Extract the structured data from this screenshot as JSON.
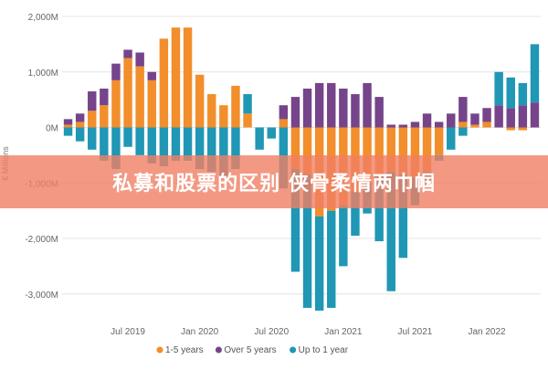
{
  "overlay": {
    "banner_text": "私募和股票的区别 侠骨柔情两巾帼"
  },
  "chart_data": {
    "type": "bar",
    "stacked": true,
    "ylabel": "€ Millions",
    "ylim": [
      -3300,
      2000
    ],
    "y_ticks": [
      2000,
      1000,
      0,
      -1000,
      -2000,
      -3000
    ],
    "y_tick_labels": [
      "2,000M",
      "1,000M",
      "0M",
      "-1,000M",
      "-2,000M",
      "-3,000M"
    ],
    "x_tick_labels": [
      "Jul 2019",
      "Jan 2020",
      "Jul 2020",
      "Jan 2021",
      "Jul 2021",
      "Jan 2022"
    ],
    "x_tick_positions": [
      5.5,
      11.5,
      17.5,
      23.5,
      29.5,
      35.5
    ],
    "categories": [
      "1",
      "2",
      "3",
      "4",
      "5",
      "6",
      "7",
      "8",
      "9",
      "10",
      "11",
      "12",
      "13",
      "14",
      "15",
      "16",
      "17",
      "18",
      "19",
      "20",
      "21",
      "22",
      "23",
      "24",
      "25",
      "26",
      "27",
      "28",
      "29",
      "30",
      "31",
      "32",
      "33",
      "34",
      "35",
      "36",
      "37",
      "38",
      "39",
      "40"
    ],
    "grid": true,
    "legend_position": "bottom",
    "series": [
      {
        "name": "1-5 years",
        "color": "#f28e2b",
        "values": [
          50,
          100,
          300,
          400,
          850,
          1250,
          1100,
          850,
          1600,
          1800,
          1800,
          950,
          600,
          400,
          750,
          250,
          0,
          0,
          150,
          -750,
          -850,
          -1600,
          -1500,
          -1400,
          -1150,
          -1000,
          -850,
          -800,
          -850,
          -900,
          -800,
          -500,
          0,
          100,
          50,
          100,
          0,
          -50,
          -50,
          0
        ],
        "labels": [
          "",
          "",
          "",
          "",
          "",
          "",
          "",
          "",
          "",
          "",
          "",
          "",
          "",
          "",
          "",
          "",
          "",
          "",
          "",
          "",
          "",
          "",
          "",
          "",
          "",
          "",
          "",
          "",
          "",
          "",
          "",
          "",
          "",
          "",
          "",
          "",
          "",
          "",
          "",
          ""
        ]
      },
      {
        "name": "Over 5 years",
        "color": "#76448a",
        "values": [
          100,
          150,
          350,
          300,
          300,
          150,
          250,
          150,
          0,
          0,
          0,
          0,
          0,
          0,
          0,
          0,
          0,
          0,
          250,
          550,
          700,
          800,
          800,
          700,
          600,
          800,
          550,
          50,
          50,
          100,
          250,
          100,
          250,
          450,
          200,
          250,
          400,
          350,
          400,
          450
        ],
        "labels": [
          "",
          "",
          "",
          "",
          "",
          "",
          "",
          "",
          "",
          "",
          "",
          "",
          "",
          "",
          "",
          "",
          "",
          "",
          "",
          "",
          "",
          "",
          "",
          "",
          "",
          "",
          "",
          "",
          "",
          "",
          "",
          "",
          "",
          "",
          "",
          "",
          "",
          "",
          "",
          ""
        ]
      },
      {
        "name": "Up to 1 year",
        "color": "#1f97b5",
        "values": [
          -150,
          -250,
          -400,
          -600,
          -750,
          -350,
          -500,
          -650,
          -700,
          -600,
          -600,
          -750,
          -800,
          -900,
          -750,
          350,
          -400,
          -200,
          -1100,
          -1850,
          -2400,
          -1700,
          -1750,
          -1100,
          -800,
          -550,
          -1200,
          -2150,
          -1500,
          -500,
          -200,
          -100,
          -400,
          -150,
          0,
          0,
          600,
          550,
          400,
          1050
        ],
        "labels": [
          "",
          "",
          "",
          "",
          "",
          "",
          "",
          "",
          "",
          "",
          "",
          "",
          "",
          "",
          "",
          "",
          "",
          "",
          "",
          "",
          "",
          "",
          "",
          "",
          "",
          "",
          "",
          "",
          "",
          "",
          "",
          "",
          "",
          "",
          "",
          "",
          "",
          "",
          "",
          ""
        ]
      }
    ]
  }
}
